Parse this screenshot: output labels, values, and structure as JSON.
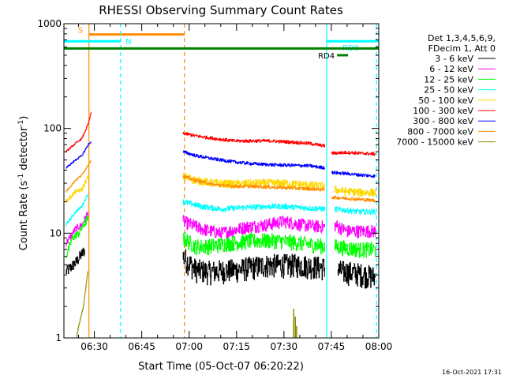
{
  "chart_data": {
    "type": "line",
    "title": "RHESSI Observing Summary Count Rates",
    "xlabel": "Start Time (05-Oct-07 06:20:22)",
    "ylabel": "Count Rate (s",
    "ylabel_sup": "-1",
    "ylabel_tail": " detector",
    "ylabel_tail_sup": "-1",
    "ylabel_end": ")",
    "x_tick_labels": [
      "06:30",
      "06:45",
      "07:00",
      "07:15",
      "07:30",
      "07:45",
      "08:00"
    ],
    "x_ticks_min": [
      30,
      45,
      60,
      75,
      90,
      105,
      120
    ],
    "xlim_min": [
      20.37,
      120
    ],
    "y_tick_labels": [
      "1",
      "10",
      "100",
      "1000"
    ],
    "y_ticks": [
      1,
      10,
      100,
      1000
    ],
    "ylim": [
      1,
      1000
    ],
    "log_y": true,
    "legend": {
      "placement": "right",
      "header": [
        "Det 1,3,4,5,6,9,",
        "FDecim 1, Att 0"
      ],
      "entries": [
        "3 - 6 keV",
        "6 - 12 keV",
        "12 - 25 keV",
        "25 - 50 keV",
        "50 - 100 keV",
        "100 - 300 keV",
        "300 - 800 keV",
        "800 - 7000 keV",
        "7000 - 15000 keV"
      ]
    },
    "series": [
      {
        "name": "3 - 6 keV",
        "color": "#000000",
        "pre": [
          [
            21,
            4.3
          ],
          [
            24,
            5.2
          ],
          [
            27,
            7.0
          ]
        ],
        "mid": [
          [
            58,
            6.0
          ],
          [
            62,
            4.5
          ],
          [
            66,
            4.3
          ],
          [
            75,
            4.5
          ],
          [
            85,
            5.0
          ],
          [
            95,
            5.0
          ],
          [
            103,
            4.7
          ]
        ],
        "post": [
          [
            107,
            4.4
          ],
          [
            112,
            4.2
          ],
          [
            116,
            4.0
          ],
          [
            119,
            3.8
          ]
        ],
        "noise": 0.26
      },
      {
        "name": "6 - 12 keV",
        "color": "#ff00ff",
        "pre": [
          [
            21,
            8
          ],
          [
            24,
            11
          ],
          [
            26,
            12
          ],
          [
            28,
            16
          ]
        ],
        "mid": [
          [
            58,
            13
          ],
          [
            64,
            11
          ],
          [
            70,
            10
          ],
          [
            78,
            11.5
          ],
          [
            84,
            12
          ],
          [
            90,
            13
          ],
          [
            96,
            12
          ],
          [
            103,
            11.5
          ]
        ],
        "post": [
          [
            106,
            12
          ],
          [
            110,
            10.5
          ],
          [
            114,
            10.5
          ],
          [
            119,
            10.5
          ]
        ],
        "noise": 0.14
      },
      {
        "name": "12 - 25 keV",
        "color": "#00ff00",
        "pre": [
          [
            21,
            6
          ],
          [
            23,
            9
          ],
          [
            25,
            10
          ],
          [
            28,
            14
          ]
        ],
        "mid": [
          [
            58,
            9
          ],
          [
            62,
            7.5
          ],
          [
            66,
            7.5
          ],
          [
            72,
            8
          ],
          [
            80,
            8.5
          ],
          [
            88,
            8.5
          ],
          [
            96,
            8
          ],
          [
            103,
            7.5
          ]
        ],
        "post": [
          [
            106,
            7.5
          ],
          [
            110,
            7.2
          ],
          [
            114,
            7.0
          ],
          [
            119,
            7.0
          ]
        ],
        "noise": 0.17
      },
      {
        "name": "25 - 50 keV",
        "color": "#00ffff",
        "pre": [
          [
            21,
            12
          ],
          [
            24,
            16
          ],
          [
            26,
            18
          ],
          [
            28,
            24
          ]
        ],
        "mid": [
          [
            58,
            20
          ],
          [
            64,
            18
          ],
          [
            70,
            17
          ],
          [
            76,
            17.5
          ],
          [
            84,
            18
          ],
          [
            90,
            18
          ],
          [
            96,
            17.5
          ],
          [
            103,
            17
          ]
        ],
        "post": [
          [
            106,
            17
          ],
          [
            110,
            16.5
          ],
          [
            114,
            16
          ],
          [
            119,
            16
          ]
        ],
        "noise": 0.06
      },
      {
        "name": "50 - 100 keV",
        "color": "#ffd700",
        "pre": [
          [
            21,
            20
          ],
          [
            24,
            25
          ],
          [
            26,
            26
          ],
          [
            28,
            35
          ]
        ],
        "mid": [
          [
            58,
            35
          ],
          [
            62,
            32
          ],
          [
            68,
            30
          ],
          [
            74,
            29.5
          ],
          [
            82,
            30
          ],
          [
            90,
            30
          ],
          [
            96,
            29
          ],
          [
            103,
            28
          ]
        ],
        "post": [
          [
            106,
            26
          ],
          [
            110,
            25
          ],
          [
            114,
            24.5
          ],
          [
            119,
            24.5
          ]
        ],
        "noise": 0.09
      },
      {
        "name": "100 - 300 keV",
        "color": "#ff0000",
        "pre": [
          [
            21,
            60
          ],
          [
            24,
            72
          ],
          [
            26,
            80
          ],
          [
            28,
            110
          ],
          [
            29,
            145
          ]
        ],
        "mid": [
          [
            58,
            90
          ],
          [
            62,
            85
          ],
          [
            68,
            80
          ],
          [
            74,
            76
          ],
          [
            80,
            76
          ],
          [
            86,
            76
          ],
          [
            92,
            74
          ],
          [
            98,
            72
          ],
          [
            103,
            68
          ]
        ],
        "post": [
          [
            105,
            58
          ],
          [
            110,
            59
          ],
          [
            114,
            58
          ],
          [
            119,
            57
          ]
        ],
        "noise": 0.035
      },
      {
        "name": "300 - 800 keV",
        "color": "#0000ff",
        "pre": [
          [
            21,
            42
          ],
          [
            24,
            50
          ],
          [
            26,
            55
          ],
          [
            28,
            70
          ],
          [
            29,
            75
          ]
        ],
        "mid": [
          [
            58,
            60
          ],
          [
            62,
            55
          ],
          [
            68,
            51
          ],
          [
            74,
            48
          ],
          [
            80,
            46
          ],
          [
            86,
            45
          ],
          [
            92,
            44.5
          ],
          [
            98,
            44
          ],
          [
            103,
            42
          ]
        ],
        "post": [
          [
            105,
            38
          ],
          [
            110,
            37
          ],
          [
            114,
            36
          ],
          [
            119,
            35
          ]
        ],
        "noise": 0.035
      },
      {
        "name": "800 - 7000 keV",
        "color": "#ff8c00",
        "pre": [
          [
            21,
            25
          ],
          [
            24,
            32
          ],
          [
            26,
            36
          ],
          [
            28,
            45
          ],
          [
            29,
            50
          ]
        ],
        "mid": [
          [
            58,
            35
          ],
          [
            62,
            32
          ],
          [
            68,
            29
          ],
          [
            74,
            28
          ],
          [
            80,
            28
          ],
          [
            86,
            27.5
          ],
          [
            92,
            27
          ],
          [
            98,
            26.5
          ],
          [
            103,
            26
          ]
        ],
        "post": [
          [
            105,
            22
          ],
          [
            110,
            21.5
          ],
          [
            114,
            21
          ],
          [
            119,
            20.5
          ]
        ],
        "noise": 0.035
      },
      {
        "name": "7000 - 15000 keV",
        "color": "#8b8b00",
        "pre": [
          [
            24.3,
            1.0
          ],
          [
            25,
            1.3
          ],
          [
            26.5,
            2.0
          ],
          [
            27.5,
            3.5
          ],
          [
            28,
            4.6
          ]
        ],
        "mid": [],
        "post": [],
        "noise": 0.0
      }
    ],
    "markers": [
      {
        "label": "S",
        "color": "#ff8c00",
        "bar": [
          28.3,
          58.5
        ],
        "level": 790,
        "lines": [
          {
            "x": 28.3,
            "style": "solid"
          },
          {
            "x": 58.5,
            "style": "dashed"
          }
        ]
      },
      {
        "label": "N",
        "color": "#00ffff",
        "bar": [
          20.4,
          38.3
        ],
        "level": 680,
        "lines": [
          {
            "x": 38.3,
            "style": "dashed"
          }
        ]
      },
      {
        "label": "RD0",
        "color": "#00ffff",
        "bar": [
          103.5,
          120
        ],
        "level": 680,
        "lines": [
          {
            "x": 103.5,
            "style": "solid"
          },
          {
            "x": 119.3,
            "style": "dashed"
          }
        ]
      },
      {
        "label": "RD4",
        "color": "#008000",
        "bar": [
          106.8,
          110.3
        ],
        "level": 500,
        "lines": []
      }
    ],
    "baseline": {
      "color": "#008000",
      "level": 580
    },
    "footer_date": "16-Oct-2021 17:31"
  }
}
